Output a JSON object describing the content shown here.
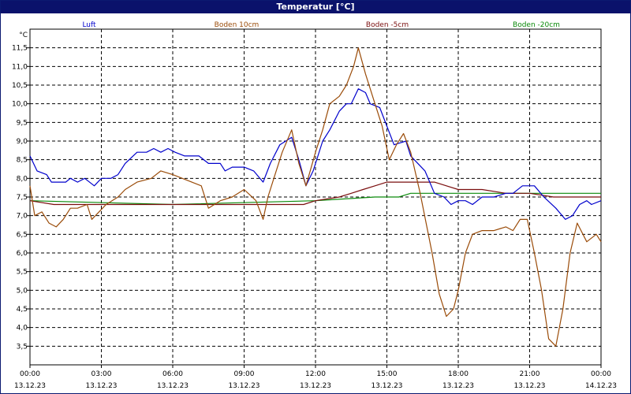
{
  "title": "Temperatur [°C]",
  "chart_data": {
    "type": "line",
    "title": "Temperatur [°C]",
    "ylabel": "°C",
    "ylim": [
      3.0,
      12.0
    ],
    "yticks": [
      "3,5",
      "4,0",
      "4,5",
      "5,0",
      "5,5",
      "6,0",
      "6,5",
      "7,0",
      "7,5",
      "8,0",
      "8,5",
      "9,0",
      "9,5",
      "10,0",
      "10,5",
      "11,0",
      "11,5"
    ],
    "xlim_hours": [
      0,
      24
    ],
    "xticks": [
      {
        "time": "00:00",
        "date": "13.12.23"
      },
      {
        "time": "03:00",
        "date": "13.12.23"
      },
      {
        "time": "06:00",
        "date": "13.12.23"
      },
      {
        "time": "09:00",
        "date": "13.12.23"
      },
      {
        "time": "12:00",
        "date": "13.12.23"
      },
      {
        "time": "15:00",
        "date": "13.12.23"
      },
      {
        "time": "18:00",
        "date": "13.12.23"
      },
      {
        "time": "21:00",
        "date": "13.12.23"
      },
      {
        "time": "00:00",
        "date": "14.12.23"
      }
    ],
    "grid": true,
    "series": [
      {
        "name": "Luft",
        "color": "#0000cc",
        "points": [
          [
            0.0,
            8.6
          ],
          [
            0.3,
            8.2
          ],
          [
            0.7,
            8.1
          ],
          [
            0.9,
            7.9
          ],
          [
            1.5,
            7.9
          ],
          [
            1.7,
            8.0
          ],
          [
            2.0,
            7.9
          ],
          [
            2.3,
            8.0
          ],
          [
            2.7,
            7.8
          ],
          [
            3.0,
            8.0
          ],
          [
            3.4,
            8.0
          ],
          [
            3.7,
            8.1
          ],
          [
            4.0,
            8.4
          ],
          [
            4.5,
            8.7
          ],
          [
            4.9,
            8.7
          ],
          [
            5.2,
            8.8
          ],
          [
            5.5,
            8.7
          ],
          [
            5.8,
            8.8
          ],
          [
            6.1,
            8.7
          ],
          [
            6.5,
            8.6
          ],
          [
            7.1,
            8.6
          ],
          [
            7.5,
            8.4
          ],
          [
            8.0,
            8.4
          ],
          [
            8.2,
            8.2
          ],
          [
            8.5,
            8.3
          ],
          [
            9.0,
            8.3
          ],
          [
            9.4,
            8.2
          ],
          [
            9.8,
            7.9
          ],
          [
            10.1,
            8.4
          ],
          [
            10.5,
            8.9
          ],
          [
            11.0,
            9.1
          ],
          [
            11.3,
            8.5
          ],
          [
            11.6,
            7.8
          ],
          [
            11.9,
            8.2
          ],
          [
            12.3,
            9.0
          ],
          [
            12.6,
            9.3
          ],
          [
            13.0,
            9.8
          ],
          [
            13.3,
            10.0
          ],
          [
            13.5,
            10.0
          ],
          [
            13.8,
            10.4
          ],
          [
            14.1,
            10.3
          ],
          [
            14.3,
            10.0
          ],
          [
            14.7,
            9.9
          ],
          [
            15.0,
            9.4
          ],
          [
            15.3,
            8.9
          ],
          [
            15.8,
            9.0
          ],
          [
            16.0,
            8.6
          ],
          [
            16.6,
            8.2
          ],
          [
            17.0,
            7.6
          ],
          [
            17.4,
            7.5
          ],
          [
            17.7,
            7.3
          ],
          [
            18.0,
            7.4
          ],
          [
            18.3,
            7.4
          ],
          [
            18.6,
            7.3
          ],
          [
            19.0,
            7.5
          ],
          [
            19.5,
            7.5
          ],
          [
            20.0,
            7.6
          ],
          [
            20.3,
            7.6
          ],
          [
            20.7,
            7.8
          ],
          [
            21.2,
            7.8
          ],
          [
            21.6,
            7.5
          ],
          [
            22.1,
            7.2
          ],
          [
            22.5,
            6.9
          ],
          [
            22.8,
            7.0
          ],
          [
            23.1,
            7.3
          ],
          [
            23.4,
            7.4
          ],
          [
            23.6,
            7.3
          ],
          [
            24.0,
            7.4
          ]
        ]
      },
      {
        "name": "Boden 10cm",
        "color": "#9a4b08",
        "points": [
          [
            0.0,
            7.8
          ],
          [
            0.2,
            7.0
          ],
          [
            0.5,
            7.1
          ],
          [
            0.8,
            6.8
          ],
          [
            1.1,
            6.7
          ],
          [
            1.4,
            6.9
          ],
          [
            1.7,
            7.2
          ],
          [
            2.0,
            7.2
          ],
          [
            2.4,
            7.3
          ],
          [
            2.6,
            6.9
          ],
          [
            2.9,
            7.1
          ],
          [
            3.2,
            7.3
          ],
          [
            3.7,
            7.5
          ],
          [
            4.0,
            7.7
          ],
          [
            4.5,
            7.9
          ],
          [
            5.1,
            8.0
          ],
          [
            5.5,
            8.2
          ],
          [
            6.0,
            8.1
          ],
          [
            6.4,
            8.0
          ],
          [
            6.8,
            7.9
          ],
          [
            7.2,
            7.8
          ],
          [
            7.5,
            7.2
          ],
          [
            8.0,
            7.4
          ],
          [
            8.5,
            7.5
          ],
          [
            9.0,
            7.7
          ],
          [
            9.5,
            7.4
          ],
          [
            9.8,
            6.9
          ],
          [
            10.0,
            7.5
          ],
          [
            10.3,
            8.1
          ],
          [
            10.6,
            8.7
          ],
          [
            11.0,
            9.3
          ],
          [
            11.3,
            8.4
          ],
          [
            11.6,
            7.8
          ],
          [
            12.0,
            8.7
          ],
          [
            12.3,
            9.3
          ],
          [
            12.6,
            10.0
          ],
          [
            13.0,
            10.2
          ],
          [
            13.3,
            10.5
          ],
          [
            13.6,
            11.0
          ],
          [
            13.8,
            11.5
          ],
          [
            14.1,
            10.8
          ],
          [
            14.5,
            10.0
          ],
          [
            14.8,
            9.4
          ],
          [
            15.1,
            8.5
          ],
          [
            15.4,
            8.9
          ],
          [
            15.7,
            9.2
          ],
          [
            16.0,
            8.7
          ],
          [
            16.4,
            7.6
          ],
          [
            16.9,
            6.0
          ],
          [
            17.2,
            4.9
          ],
          [
            17.5,
            4.3
          ],
          [
            17.8,
            4.5
          ],
          [
            18.0,
            5.0
          ],
          [
            18.3,
            6.0
          ],
          [
            18.6,
            6.5
          ],
          [
            19.0,
            6.6
          ],
          [
            19.5,
            6.6
          ],
          [
            20.0,
            6.7
          ],
          [
            20.3,
            6.6
          ],
          [
            20.6,
            6.9
          ],
          [
            20.9,
            6.9
          ],
          [
            21.2,
            6.0
          ],
          [
            21.5,
            5.0
          ],
          [
            21.8,
            3.7
          ],
          [
            22.1,
            3.5
          ],
          [
            22.4,
            4.5
          ],
          [
            22.7,
            6.0
          ],
          [
            23.0,
            6.8
          ],
          [
            23.4,
            6.3
          ],
          [
            23.8,
            6.5
          ],
          [
            24.0,
            6.3
          ]
        ]
      },
      {
        "name": "Boden -5cm",
        "color": "#7a0e0e",
        "points": [
          [
            0.0,
            7.4
          ],
          [
            1.0,
            7.3
          ],
          [
            3.0,
            7.3
          ],
          [
            3.5,
            7.3
          ],
          [
            4.0,
            7.3
          ],
          [
            10.0,
            7.3
          ],
          [
            11.0,
            7.3
          ],
          [
            11.5,
            7.3
          ],
          [
            12.0,
            7.4
          ],
          [
            13.0,
            7.5
          ],
          [
            13.5,
            7.6
          ],
          [
            14.0,
            7.7
          ],
          [
            14.5,
            7.8
          ],
          [
            15.0,
            7.9
          ],
          [
            16.0,
            7.9
          ],
          [
            17.0,
            7.9
          ],
          [
            17.5,
            7.8
          ],
          [
            18.0,
            7.7
          ],
          [
            19.0,
            7.7
          ],
          [
            20.0,
            7.6
          ],
          [
            21.0,
            7.6
          ],
          [
            22.0,
            7.5
          ],
          [
            24.0,
            7.5
          ]
        ]
      },
      {
        "name": "Boden -20cm",
        "color": "#0a8a0a",
        "points": [
          [
            0.0,
            7.4
          ],
          [
            6.0,
            7.3
          ],
          [
            12.0,
            7.4
          ],
          [
            14.5,
            7.5
          ],
          [
            15.5,
            7.5
          ],
          [
            16.0,
            7.6
          ],
          [
            20.0,
            7.6
          ],
          [
            24.0,
            7.6
          ]
        ]
      }
    ]
  }
}
